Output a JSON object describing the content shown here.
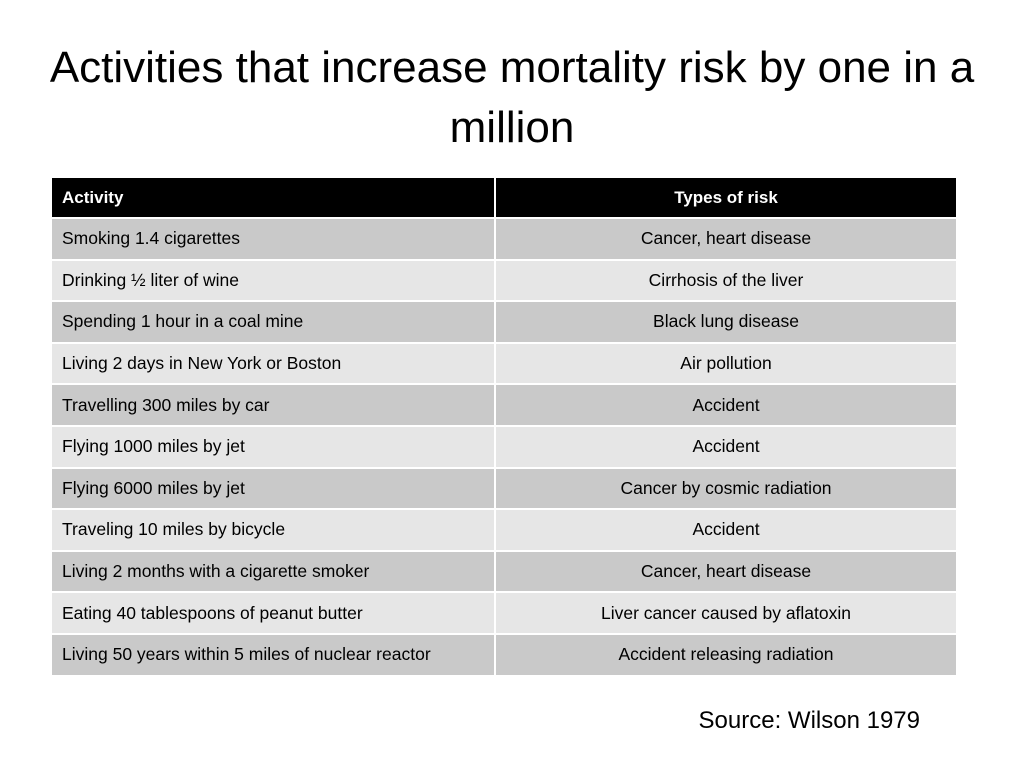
{
  "title": "Activities that increase mortality risk by one in a million",
  "table": {
    "headers": [
      "Activity",
      "Types of risk"
    ],
    "rows": [
      [
        "Smoking 1.4 cigarettes",
        "Cancer, heart disease"
      ],
      [
        "Drinking ½ liter of wine",
        "Cirrhosis of the liver"
      ],
      [
        "Spending 1 hour in a coal mine",
        "Black lung disease"
      ],
      [
        "Living 2 days in New York or Boston",
        "Air pollution"
      ],
      [
        "Travelling 300 miles by car",
        "Accident"
      ],
      [
        "Flying 1000 miles by jet",
        "Accident"
      ],
      [
        "Flying 6000 miles by jet",
        "Cancer by cosmic radiation"
      ],
      [
        "Traveling 10 miles by bicycle",
        "Accident"
      ],
      [
        "Living 2 months with a cigarette smoker",
        "Cancer, heart disease"
      ],
      [
        "Eating 40 tablespoons of peanut butter",
        "Liver cancer caused by aflatoxin"
      ],
      [
        "Living 50 years within 5 miles of nuclear reactor",
        "Accident releasing radiation"
      ]
    ]
  },
  "source": "Source: Wilson 1979",
  "colors": {
    "header_bg": "#000000",
    "header_text": "#ffffff",
    "row_dark": "#c9c9c9",
    "row_light": "#e6e6e6"
  }
}
